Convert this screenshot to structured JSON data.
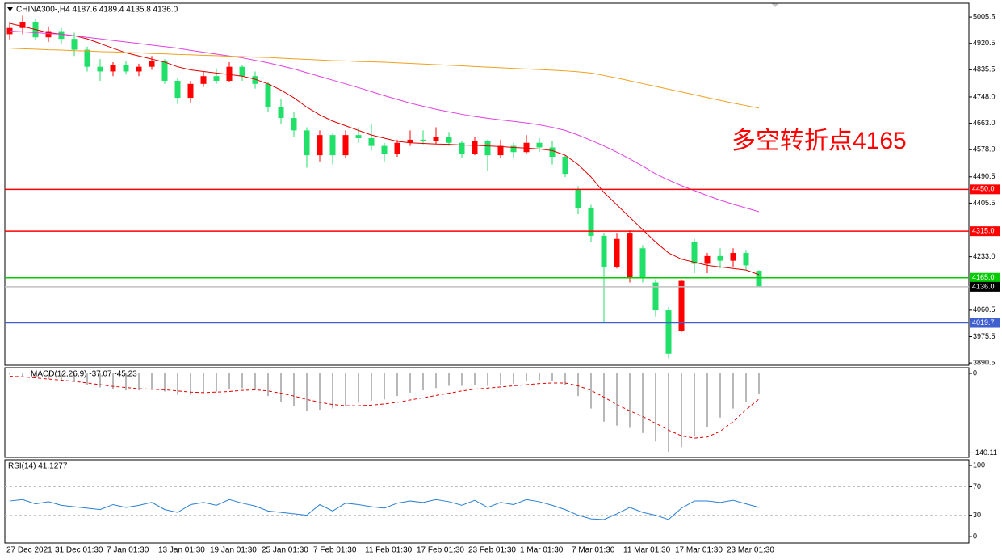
{
  "chart_data": [
    {
      "type": "candlestick",
      "title": "CHINA300-,H4 4187.6 4189.4 4135.8 4136.0",
      "annotation": "多空转折点4165",
      "annotation_color": "#ff0000",
      "up_color": "#ff0000",
      "down_color": "#21e06a",
      "categories": [
        "27 Dec 2021",
        null,
        null,
        null,
        "31 Dec 01:30",
        null,
        null,
        null,
        "7 Jan 01:30",
        null,
        null,
        null,
        "13 Jan 01:30",
        null,
        null,
        null,
        "19 Jan 01:30",
        null,
        null,
        null,
        "25 Jan 01:30",
        null,
        null,
        null,
        "7 Feb 01:30",
        null,
        null,
        null,
        "11 Feb 01:30",
        null,
        null,
        null,
        "17 Feb 01:30",
        null,
        null,
        null,
        "23 Feb 01:30",
        null,
        null,
        null,
        "1 Mar 01:30",
        null,
        null,
        null,
        "7 Mar 01:30",
        null,
        null,
        null,
        "11 Mar 01:30",
        null,
        null,
        null,
        "17 Mar 01:30",
        null,
        null,
        null,
        "23 Mar 01:30",
        null,
        null
      ],
      "open": [
        4950,
        4970,
        4990,
        4940,
        4960,
        4935,
        4900,
        4845,
        4830,
        4850,
        4830,
        4845,
        4865,
        4800,
        4745,
        4790,
        4815,
        4800,
        4845,
        4815,
        4790,
        4715,
        4680,
        4640,
        4560,
        4625,
        4560,
        4625,
        4615,
        4590,
        4565,
        4600,
        4610,
        4605,
        4620,
        4600,
        4565,
        4605,
        4560,
        4590,
        4570,
        4600,
        4585,
        4555,
        4450,
        4390,
        4300,
        4200,
        4165,
        4260,
        4150,
        4060,
        3995,
        4280,
        4210,
        4235,
        4220,
        4245,
        4187.6
      ],
      "high": [
        4990,
        5010,
        5000,
        4975,
        4970,
        4955,
        4910,
        4870,
        4860,
        4865,
        4855,
        4880,
        4870,
        4810,
        4800,
        4830,
        4840,
        4860,
        4850,
        4830,
        4795,
        4740,
        4700,
        4650,
        4640,
        4630,
        4640,
        4650,
        4660,
        4600,
        4610,
        4640,
        4640,
        4650,
        4635,
        4605,
        4620,
        4610,
        4610,
        4600,
        4625,
        4615,
        4605,
        4560,
        4460,
        4400,
        4310,
        4310,
        4318,
        4270,
        4160,
        4070,
        4160,
        4290,
        4245,
        4260,
        4260,
        4255,
        4189.4
      ],
      "low": [
        4930,
        4950,
        4930,
        4925,
        4920,
        4880,
        4830,
        4800,
        4815,
        4820,
        4815,
        4835,
        4790,
        4725,
        4730,
        4780,
        4790,
        4795,
        4800,
        4775,
        4700,
        4660,
        4620,
        4520,
        4540,
        4530,
        4550,
        4600,
        4575,
        4540,
        4555,
        4590,
        4595,
        4595,
        4590,
        4550,
        4560,
        4510,
        4550,
        4550,
        4565,
        4570,
        4530,
        4490,
        4370,
        4280,
        4020,
        4195,
        4150,
        4150,
        4040,
        3905,
        3990,
        4180,
        4180,
        4195,
        4200,
        4190,
        4135.8
      ],
      "close": [
        4970,
        4990,
        4940,
        4960,
        4935,
        4900,
        4845,
        4830,
        4850,
        4830,
        4845,
        4865,
        4800,
        4745,
        4790,
        4815,
        4800,
        4845,
        4815,
        4790,
        4715,
        4680,
        4640,
        4560,
        4625,
        4560,
        4625,
        4615,
        4590,
        4565,
        4600,
        4610,
        4605,
        4620,
        4600,
        4565,
        4605,
        4560,
        4590,
        4570,
        4600,
        4585,
        4555,
        4500,
        4390,
        4300,
        4200,
        4290,
        4310,
        4165,
        4060,
        3920,
        4155,
        4210,
        4235,
        4220,
        4245,
        4205,
        4136.0
      ],
      "lines": [
        {
          "color": "#e00000",
          "values": [
            4985,
            4975,
            4965,
            4955,
            4950,
            4945,
            4935,
            4920,
            4905,
            4890,
            4880,
            4870,
            4860,
            4845,
            4835,
            4830,
            4825,
            4820,
            4815,
            4805,
            4790,
            4770,
            4745,
            4715,
            4690,
            4670,
            4655,
            4640,
            4625,
            4615,
            4605,
            4600,
            4598,
            4596,
            4595,
            4593,
            4592,
            4590,
            4588,
            4585,
            4583,
            4580,
            4575,
            4560,
            4530,
            4490,
            4440,
            4400,
            4360,
            4320,
            4280,
            4245,
            4225,
            4215,
            4205,
            4200,
            4195,
            4190,
            4175
          ]
        },
        {
          "color": "#e040e0",
          "values": [
            4960,
            4958,
            4955,
            4952,
            4950,
            4945,
            4940,
            4935,
            4930,
            4925,
            4920,
            4915,
            4910,
            4905,
            4898,
            4892,
            4886,
            4880,
            4874,
            4866,
            4858,
            4848,
            4838,
            4826,
            4814,
            4802,
            4790,
            4778,
            4765,
            4752,
            4740,
            4728,
            4718,
            4708,
            4700,
            4692,
            4685,
            4679,
            4674,
            4669,
            4664,
            4658,
            4650,
            4640,
            4625,
            4608,
            4590,
            4570,
            4548,
            4525,
            4500,
            4480,
            4462,
            4446,
            4430,
            4415,
            4402,
            4390,
            4378
          ]
        },
        {
          "color": "#f0a020",
          "values": [
            4905,
            4903,
            4902,
            4900,
            4899,
            4897,
            4896,
            4894,
            4893,
            4891,
            4890,
            4888,
            4887,
            4885,
            4884,
            4882,
            4881,
            4879,
            4878,
            4876,
            4875,
            4873,
            4871,
            4869,
            4867,
            4865,
            4864,
            4862,
            4861,
            4860,
            4858,
            4856,
            4854,
            4852,
            4850,
            4848,
            4846,
            4844,
            4842,
            4840,
            4838,
            4836,
            4834,
            4832,
            4829,
            4825,
            4817,
            4809,
            4800,
            4791,
            4782,
            4773,
            4764,
            4755,
            4746,
            4737,
            4728,
            4720,
            4712
          ]
        }
      ],
      "hlines": [
        {
          "value": 4450,
          "label": "4450.0",
          "color": "#ff0000",
          "label_color": "#ff0000"
        },
        {
          "value": 4315,
          "label": "4315.0",
          "color": "#ff0000",
          "label_color": "#ff0000"
        },
        {
          "value": 4165,
          "label": "4165.0",
          "color": "#00cc00",
          "label_color": "#00cc00"
        },
        {
          "value": 4136,
          "label": "4136.0",
          "color": "#c0c0c0",
          "label_color": "#000000"
        },
        {
          "value": 4019.7,
          "label": "4019.7",
          "color": "#4060d0",
          "label_color": "#4060d0"
        }
      ],
      "ylim": [
        3883,
        5050
      ],
      "yticks": [
        5005.5,
        4920.5,
        4835.5,
        {
          "value": 4748,
          "label": "4748.0"
        },
        {
          "value": 4663,
          "label": "4663.0"
        },
        {
          "value": 4578,
          "label": "4578.0"
        },
        4490.5,
        4405.5,
        {
          "value": 4233,
          "label": "4233.0"
        },
        4060.5,
        3975.5,
        3890.5
      ]
    },
    {
      "type": "bar",
      "title": "MACD(12,26,9) -37.07 -45.23",
      "series": [
        {
          "type": "bar",
          "color": "#b8b8b8",
          "values": [
            -2,
            -5,
            -8,
            -10,
            -12,
            -15,
            -20,
            -25,
            -28,
            -30,
            -30,
            -28,
            -32,
            -38,
            -38,
            -35,
            -32,
            -28,
            -26,
            -30,
            -40,
            -50,
            -58,
            -66,
            -64,
            -62,
            -58,
            -52,
            -48,
            -46,
            -40,
            -34,
            -30,
            -26,
            -22,
            -22,
            -20,
            -22,
            -20,
            -18,
            -14,
            -12,
            -14,
            -20,
            -40,
            -62,
            -85,
            -92,
            -96,
            -105,
            -120,
            -138,
            -130,
            -110,
            -95,
            -78,
            -62,
            -50,
            -37.07
          ]
        },
        {
          "type": "line",
          "color": "#e00000",
          "dashed": true,
          "values": [
            -5,
            -6,
            -8,
            -10,
            -12,
            -14,
            -17,
            -20,
            -23,
            -25,
            -27,
            -28,
            -29,
            -31,
            -33,
            -34,
            -33,
            -32,
            -30,
            -29,
            -31,
            -35,
            -40,
            -46,
            -51,
            -55,
            -57,
            -57,
            -56,
            -54,
            -51,
            -47,
            -43,
            -39,
            -35,
            -31,
            -28,
            -26,
            -24,
            -22,
            -20,
            -18,
            -17,
            -17,
            -22,
            -30,
            -42,
            -55,
            -66,
            -76,
            -88,
            -100,
            -110,
            -114,
            -112,
            -102,
            -85,
            -64,
            -45.23
          ]
        }
      ],
      "ylim": [
        -148,
        10
      ],
      "yticks": [
        0,
        -140.11
      ]
    },
    {
      "type": "line",
      "title": "RSI(14) 41.1277",
      "color": "#2a7fd4",
      "values": [
        50,
        52,
        46,
        49,
        44,
        42,
        40,
        38,
        45,
        41,
        44,
        48,
        38,
        34,
        45,
        48,
        44,
        52,
        47,
        43,
        36,
        34,
        32,
        30,
        45,
        36,
        47,
        45,
        42,
        40,
        47,
        50,
        48,
        52,
        49,
        44,
        51,
        41,
        48,
        45,
        52,
        49,
        44,
        38,
        30,
        25,
        24,
        32,
        41,
        34,
        30,
        24,
        40,
        50,
        50,
        48,
        51,
        46,
        41.1277
      ],
      "levels": [
        70,
        30
      ],
      "ylim": [
        -9,
        108
      ],
      "yticks": [
        100,
        70,
        30,
        0
      ]
    }
  ]
}
